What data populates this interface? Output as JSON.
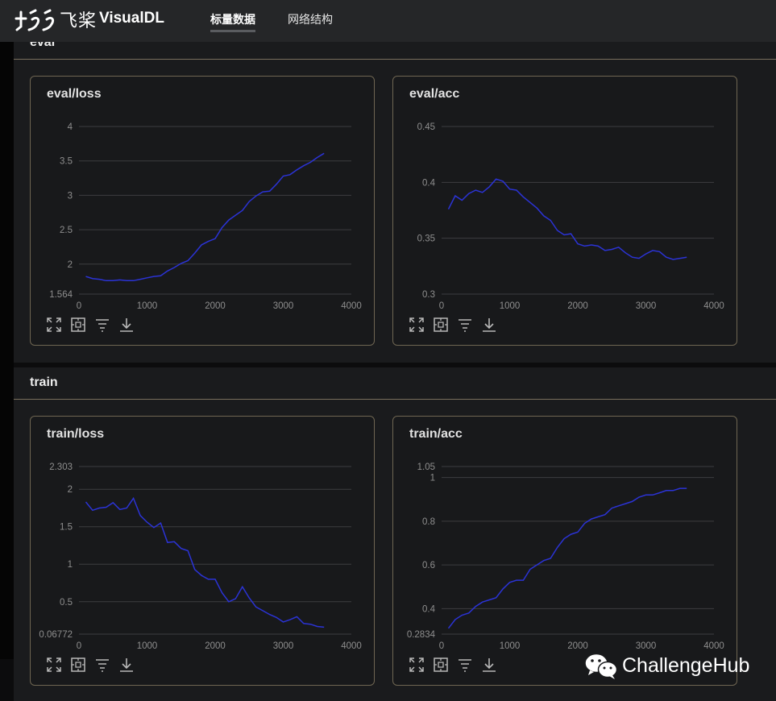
{
  "app": {
    "logo_cn": "飞桨",
    "logo_name": "VisualDL"
  },
  "nav": {
    "tabs": [
      {
        "label": "标量数据",
        "active": true
      },
      {
        "label": "网络结构",
        "active": false
      }
    ]
  },
  "sections": [
    {
      "title": "eval"
    },
    {
      "title": "train"
    }
  ],
  "watermark": {
    "text": "ChallengeHub"
  },
  "colors": {
    "line": "#2b33d6",
    "grid": "#3c3d40",
    "card_border": "#6f6652"
  },
  "toolbar_icons": [
    "expand-icon",
    "fit-icon",
    "filter-icon",
    "download-icon"
  ],
  "chart_data": [
    {
      "type": "line",
      "title": "eval/loss",
      "xlim": [
        0,
        4000
      ],
      "ylim": [
        1.564,
        4.0
      ],
      "xticks": [
        "0",
        "1000",
        "2000",
        "3000",
        "4000"
      ],
      "yticks": [
        {
          "v": 1.564,
          "label": "1.564"
        },
        {
          "v": 2,
          "label": "2"
        },
        {
          "v": 2.5,
          "label": "2.5"
        },
        {
          "v": 3,
          "label": "3"
        },
        {
          "v": 3.5,
          "label": "3.5"
        },
        {
          "v": 4,
          "label": "4"
        }
      ],
      "x": [
        100,
        200,
        300,
        400,
        500,
        600,
        700,
        800,
        900,
        1000,
        1100,
        1200,
        1300,
        1400,
        1500,
        1600,
        1700,
        1800,
        1900,
        2000,
        2100,
        2200,
        2300,
        2400,
        2500,
        2600,
        2700,
        2800,
        2900,
        3000,
        3100,
        3200,
        3300,
        3400,
        3500,
        3600
      ],
      "y": [
        1.82,
        1.79,
        1.78,
        1.76,
        1.76,
        1.77,
        1.76,
        1.76,
        1.78,
        1.8,
        1.82,
        1.83,
        1.9,
        1.95,
        2.01,
        2.05,
        2.16,
        2.28,
        2.33,
        2.37,
        2.53,
        2.64,
        2.71,
        2.78,
        2.91,
        2.99,
        3.05,
        3.06,
        3.16,
        3.28,
        3.3,
        3.37,
        3.43,
        3.48,
        3.55,
        3.61
      ]
    },
    {
      "type": "line",
      "title": "eval/acc",
      "xlim": [
        0,
        4000
      ],
      "ylim": [
        0.3,
        0.45
      ],
      "xticks": [
        "0",
        "1000",
        "2000",
        "3000",
        "4000"
      ],
      "yticks": [
        {
          "v": 0.3,
          "label": "0.3"
        },
        {
          "v": 0.35,
          "label": "0.35"
        },
        {
          "v": 0.4,
          "label": "0.4"
        },
        {
          "v": 0.45,
          "label": "0.45"
        }
      ],
      "x": [
        100,
        200,
        300,
        400,
        500,
        600,
        700,
        800,
        900,
        1000,
        1100,
        1200,
        1300,
        1400,
        1500,
        1600,
        1700,
        1800,
        1900,
        2000,
        2100,
        2200,
        2300,
        2400,
        2500,
        2600,
        2700,
        2800,
        2900,
        3000,
        3100,
        3200,
        3300,
        3400,
        3500,
        3600
      ],
      "y": [
        0.376,
        0.388,
        0.384,
        0.39,
        0.393,
        0.391,
        0.396,
        0.403,
        0.401,
        0.394,
        0.393,
        0.387,
        0.382,
        0.377,
        0.37,
        0.366,
        0.357,
        0.353,
        0.354,
        0.345,
        0.343,
        0.344,
        0.343,
        0.339,
        0.34,
        0.342,
        0.337,
        0.333,
        0.332,
        0.336,
        0.339,
        0.338,
        0.333,
        0.331,
        0.332,
        0.333
      ]
    },
    {
      "type": "line",
      "title": "train/loss",
      "xlim": [
        0,
        4000
      ],
      "ylim": [
        0.06772,
        2.303
      ],
      "xticks": [
        "0",
        "1000",
        "2000",
        "3000",
        "4000"
      ],
      "yticks": [
        {
          "v": 0.06772,
          "label": "0.06772"
        },
        {
          "v": 0.5,
          "label": "0.5"
        },
        {
          "v": 1,
          "label": "1"
        },
        {
          "v": 1.5,
          "label": "1.5"
        },
        {
          "v": 2,
          "label": "2"
        },
        {
          "v": 2.303,
          "label": "2.303"
        }
      ],
      "x": [
        100,
        200,
        300,
        400,
        500,
        600,
        700,
        800,
        900,
        1000,
        1100,
        1200,
        1300,
        1400,
        1500,
        1600,
        1700,
        1800,
        1900,
        2000,
        2100,
        2200,
        2300,
        2400,
        2500,
        2600,
        2700,
        2800,
        2900,
        3000,
        3100,
        3200,
        3300,
        3400,
        3500,
        3600
      ],
      "y": [
        1.83,
        1.72,
        1.75,
        1.76,
        1.82,
        1.73,
        1.75,
        1.88,
        1.65,
        1.56,
        1.49,
        1.55,
        1.29,
        1.3,
        1.21,
        1.18,
        0.93,
        0.85,
        0.8,
        0.8,
        0.62,
        0.5,
        0.54,
        0.7,
        0.55,
        0.43,
        0.38,
        0.33,
        0.29,
        0.23,
        0.26,
        0.3,
        0.21,
        0.2,
        0.17,
        0.16
      ]
    },
    {
      "type": "line",
      "title": "train/acc",
      "xlim": [
        0,
        4000
      ],
      "ylim": [
        0.2834,
        1.05
      ],
      "xticks": [
        "0",
        "1000",
        "2000",
        "3000",
        "4000"
      ],
      "yticks": [
        {
          "v": 0.2834,
          "label": "0.2834"
        },
        {
          "v": 0.4,
          "label": "0.4"
        },
        {
          "v": 0.6,
          "label": "0.6"
        },
        {
          "v": 0.8,
          "label": "0.8"
        },
        {
          "v": 1,
          "label": "1"
        },
        {
          "v": 1.05,
          "label": "1.05"
        }
      ],
      "x": [
        100,
        200,
        300,
        400,
        500,
        600,
        700,
        800,
        900,
        1000,
        1100,
        1200,
        1300,
        1400,
        1500,
        1600,
        1700,
        1800,
        1900,
        2000,
        2100,
        2200,
        2300,
        2400,
        2500,
        2600,
        2700,
        2800,
        2900,
        3000,
        3100,
        3200,
        3300,
        3400,
        3500,
        3600
      ],
      "y": [
        0.31,
        0.35,
        0.37,
        0.38,
        0.41,
        0.43,
        0.44,
        0.45,
        0.49,
        0.52,
        0.53,
        0.53,
        0.58,
        0.6,
        0.62,
        0.63,
        0.68,
        0.72,
        0.74,
        0.75,
        0.79,
        0.81,
        0.82,
        0.83,
        0.86,
        0.87,
        0.88,
        0.89,
        0.91,
        0.92,
        0.92,
        0.93,
        0.94,
        0.94,
        0.95,
        0.95
      ]
    }
  ]
}
